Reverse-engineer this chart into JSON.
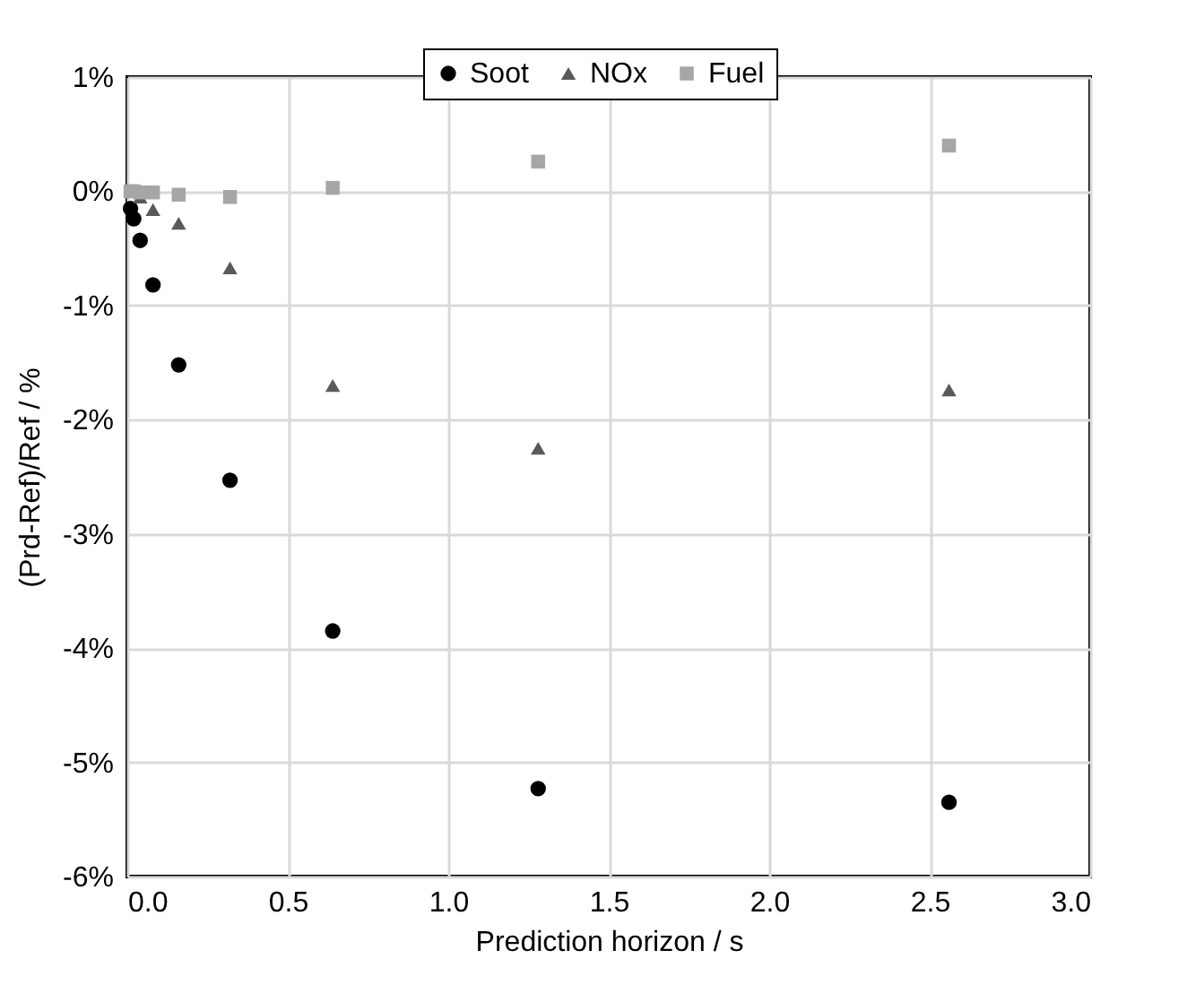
{
  "chart_data": {
    "type": "scatter",
    "xlabel": "Prediction horizon / s",
    "ylabel": "(Prd-Ref)/Ref / %",
    "x": [
      0.01,
      0.02,
      0.04,
      0.08,
      0.16,
      0.32,
      0.64,
      1.28,
      2.56
    ],
    "series": [
      {
        "name": "Soot",
        "color": "#000000",
        "marker": "circle",
        "values": [
          -0.15,
          -0.24,
          -0.43,
          -0.82,
          -1.52,
          -2.53,
          -3.85,
          -5.23,
          -5.35
        ]
      },
      {
        "name": "NOx",
        "color": "#595959",
        "marker": "triangle",
        "values": [
          null,
          null,
          -0.05,
          -0.16,
          -0.28,
          -0.67,
          -1.7,
          -2.25,
          -1.74
        ]
      },
      {
        "name": "Fuel",
        "color": "#a6a6a6",
        "marker": "square",
        "values": [
          0,
          0,
          -0.01,
          -0.01,
          -0.03,
          -0.05,
          0.03,
          0.26,
          0.4
        ]
      }
    ],
    "xlim": [
      0,
      3
    ],
    "xticks": [
      {
        "value": 0,
        "label": "0.0"
      },
      {
        "value": 0.5,
        "label": "0.5"
      },
      {
        "value": 1,
        "label": "1.0"
      },
      {
        "value": 1.5,
        "label": "1.5"
      },
      {
        "value": 2,
        "label": "2.0"
      },
      {
        "value": 2.5,
        "label": "2.5"
      },
      {
        "value": 3,
        "label": "3.0"
      }
    ],
    "ylim": [
      -6,
      1
    ],
    "yticks": [
      {
        "value": -6,
        "label": "-6%"
      },
      {
        "value": -5,
        "label": "-5%"
      },
      {
        "value": -4,
        "label": "-4%"
      },
      {
        "value": -3,
        "label": "-3%"
      },
      {
        "value": -2,
        "label": "-2%"
      },
      {
        "value": -1,
        "label": "-1%"
      },
      {
        "value": 0,
        "label": "0%"
      },
      {
        "value": 1,
        "label": "1%"
      }
    ],
    "grid": true,
    "legend": "top"
  }
}
